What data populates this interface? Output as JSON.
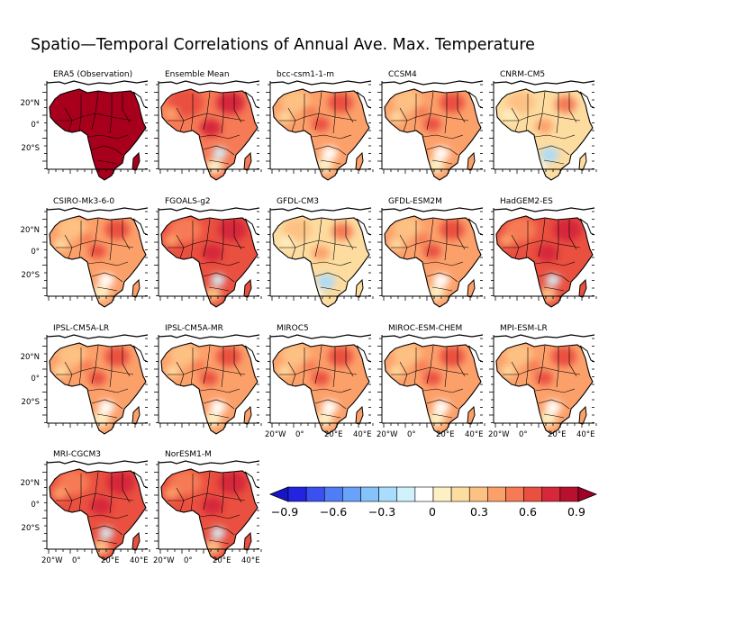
{
  "title": "Spatio—Temporal Correlations of Annual Ave. Max. Temperature",
  "panels": [
    {
      "label": "ERA5 (Observation)",
      "pattern": "obs"
    },
    {
      "label": "Ensemble Mean",
      "pattern": "ens"
    },
    {
      "label": "bcc-csm1-1-m",
      "pattern": "mid"
    },
    {
      "label": "CCSM4",
      "pattern": "mid"
    },
    {
      "label": "CNRM-CM5",
      "pattern": "weak"
    },
    {
      "label": "CSIRO-Mk3-6-0",
      "pattern": "mid"
    },
    {
      "label": "FGOALS-g2",
      "pattern": "strong"
    },
    {
      "label": "GFDL-CM3",
      "pattern": "weak"
    },
    {
      "label": "GFDL-ESM2M",
      "pattern": "mid"
    },
    {
      "label": "HadGEM2-ES",
      "pattern": "strong"
    },
    {
      "label": "IPSL-CM5A-LR",
      "pattern": "mid"
    },
    {
      "label": "IPSL-CM5A-MR",
      "pattern": "mid"
    },
    {
      "label": "MIROC5",
      "pattern": "mid"
    },
    {
      "label": "MIROC-ESM-CHEM",
      "pattern": "mid"
    },
    {
      "label": "MPI-ESM-LR",
      "pattern": "mid"
    },
    {
      "label": "MRI-CGCM3",
      "pattern": "strong"
    },
    {
      "label": "NorESM1-M",
      "pattern": "strong"
    }
  ],
  "lat_ticks": [
    "20°N",
    "0°",
    "20°S"
  ],
  "lon_ticks": [
    "20°W",
    "0°",
    "20°E",
    "40°E"
  ],
  "colorbar": {
    "tick_labels": [
      "−0.9",
      "−0.6",
      "−0.3",
      "0",
      "0.3",
      "0.6",
      "0.9"
    ],
    "colors": [
      "#2323e0",
      "#3a50f0",
      "#4f7df5",
      "#68a2fa",
      "#86c3fb",
      "#a9dcfd",
      "#cff2fd",
      "#ffffff",
      "#fdf0c4",
      "#fddca0",
      "#fdc184",
      "#fca06a",
      "#f67a55",
      "#ea5040",
      "#d6283a",
      "#b8102f"
    ],
    "under_color": "#1616c8",
    "over_color": "#a00028"
  }
}
